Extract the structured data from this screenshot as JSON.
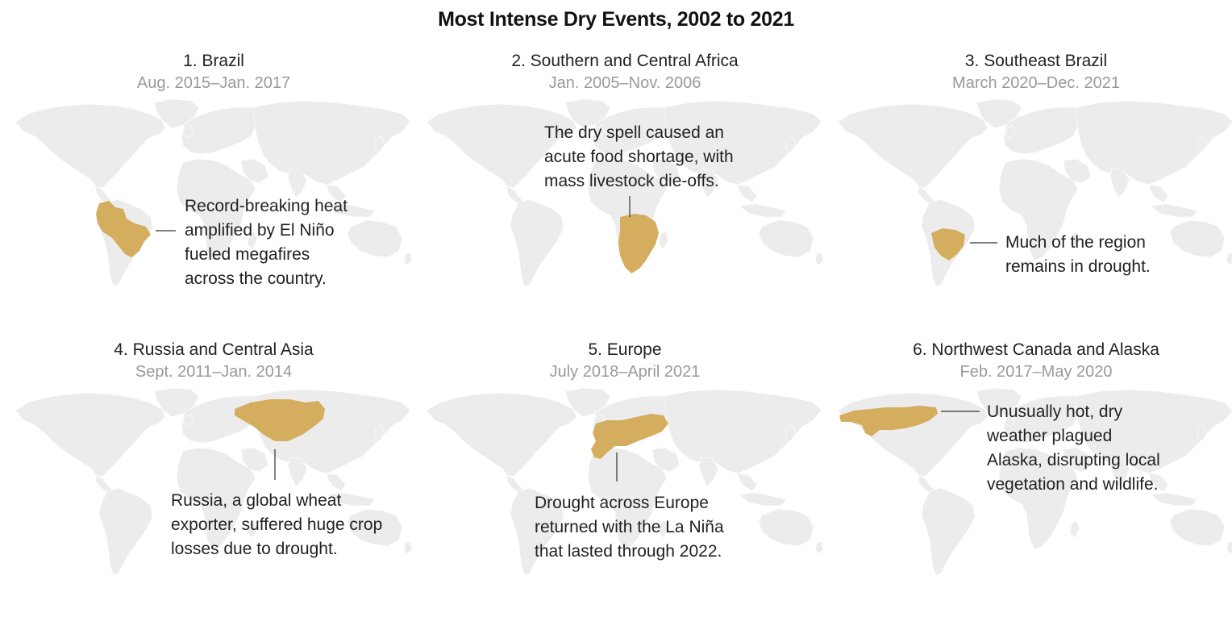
{
  "title": "Most Intense Dry Events, 2002 to 2021",
  "colors": {
    "drought": "#D4AD5F",
    "land": "#ECECEC",
    "dates": "#9A9A9A",
    "text": "#222222"
  },
  "events": [
    {
      "title": "1. Brazil",
      "dates": "Aug. 2015–Jan. 2017",
      "note": [
        "Record-breaking heat",
        "amplified by El Niño",
        "fueled megafires",
        "across the country."
      ]
    },
    {
      "title": "2. Southern and Central Africa",
      "dates": "Jan. 2005–Nov. 2006",
      "note": [
        "The dry spell caused an",
        "acute food shortage, with",
        "mass livestock die-offs."
      ]
    },
    {
      "title": "3. Southeast Brazil",
      "dates": "March 2020–Dec. 2021",
      "note": [
        "Much of the region",
        "remains in drought."
      ]
    },
    {
      "title": "4. Russia and Central Asia",
      "dates": "Sept. 2011–Jan. 2014",
      "note": [
        "Russia, a global wheat",
        "exporter, suffered huge crop",
        "losses due to drought."
      ]
    },
    {
      "title": "5. Europe",
      "dates": "July 2018–April 2021",
      "note": [
        "Drought across Europe",
        "returned with the La Niña",
        "that lasted through 2022."
      ]
    },
    {
      "title": "6. Northwest Canada and Alaska",
      "dates": "Feb. 2017–May 2020",
      "note": [
        "Unusually hot, dry",
        "weather plagued",
        "Alaska, disrupting local",
        "vegetation and wildlife."
      ]
    }
  ]
}
